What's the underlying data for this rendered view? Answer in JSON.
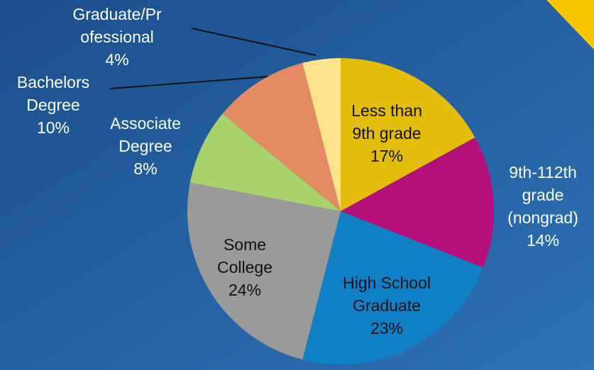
{
  "chart_data": {
    "type": "pie",
    "categories": [
      "Less than\n9th grade",
      "9th-112th\ngrade\n(nongrad)",
      "High School\nGraduate",
      "Some\nCollege",
      "Associate\nDegree",
      "Bachelors\nDegree",
      "Graduate/Pr\nofessional"
    ],
    "values": [
      17,
      14,
      23,
      24,
      8,
      10,
      4
    ],
    "value_labels": [
      "17%",
      "14%",
      "23%",
      "24%",
      "8%",
      "10%",
      "4%"
    ],
    "colors": [
      "#e2bd0a",
      "#b5107a",
      "#1080c6",
      "#9a9a9a",
      "#a8d26c",
      "#e48a62",
      "#fde28c"
    ]
  }
}
